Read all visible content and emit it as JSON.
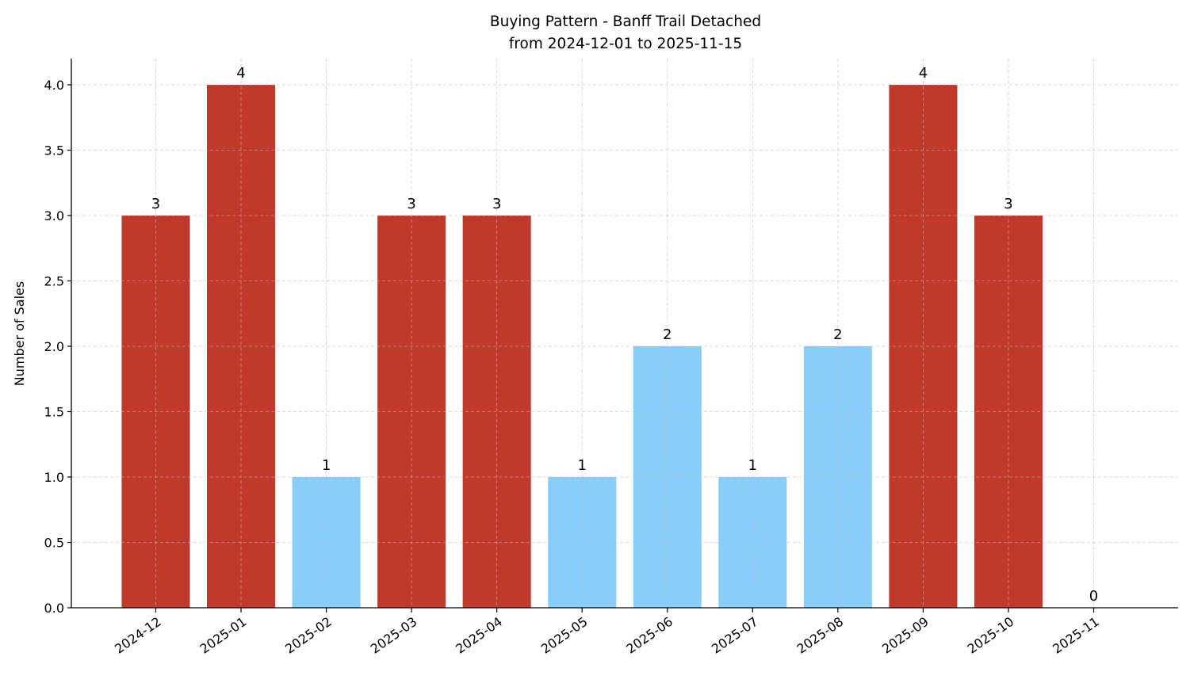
{
  "chart_data": {
    "type": "bar",
    "title": "Buying Pattern - Banff Trail Detached",
    "subtitle": "from 2024-12-01 to 2025-11-15",
    "xlabel": "",
    "ylabel": "Number of Sales",
    "categories": [
      "2024-12",
      "2025-01",
      "2025-02",
      "2025-03",
      "2025-04",
      "2025-05",
      "2025-06",
      "2025-07",
      "2025-08",
      "2025-09",
      "2025-10",
      "2025-11"
    ],
    "values": [
      3,
      4,
      1,
      3,
      3,
      1,
      2,
      1,
      2,
      4,
      3,
      0
    ],
    "data_labels": [
      "3",
      "4",
      "1",
      "3",
      "3",
      "1",
      "2",
      "1",
      "2",
      "4",
      "3",
      "0"
    ],
    "ylim": [
      0,
      4.2
    ],
    "yticks": [
      "0.0",
      "0.5",
      "1.0",
      "1.5",
      "2.0",
      "2.5",
      "3.0",
      "3.5",
      "4.0"
    ],
    "grid": true,
    "colors": {
      "high": "#c0392b",
      "low": "#87cefa"
    }
  }
}
